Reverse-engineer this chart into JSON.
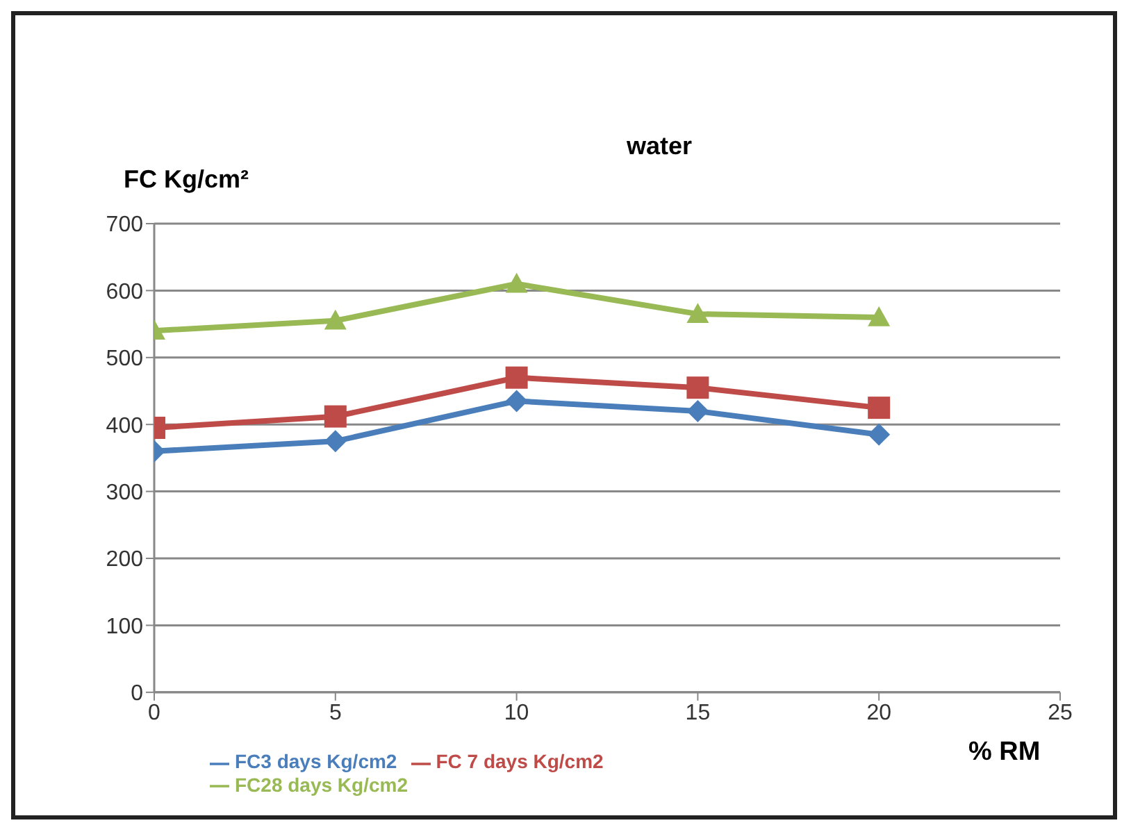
{
  "chart_data": {
    "type": "line",
    "title": "water",
    "ylabel": "FC Kg/cm²",
    "xlabel": "% RM",
    "x": [
      0,
      5,
      10,
      15,
      20
    ],
    "xlim": [
      0,
      25
    ],
    "xticks": [
      0,
      5,
      10,
      15,
      20,
      25
    ],
    "ylim": [
      0,
      700
    ],
    "yticks": [
      0,
      100,
      200,
      300,
      400,
      500,
      600,
      700
    ],
    "grid": "y",
    "legend": "bottom",
    "series": [
      {
        "name": "FC3 days  Kg/cm2",
        "color": "#4a7ebb",
        "marker": "diamond",
        "values": [
          360,
          375,
          435,
          420,
          385
        ]
      },
      {
        "name": "FC 7 days  Kg/cm2",
        "color": "#be4b48",
        "marker": "square",
        "values": [
          395,
          412,
          470,
          455,
          425
        ]
      },
      {
        "name": "FC28 days Kg/cm2",
        "color": "#98b954",
        "marker": "triangle",
        "values": [
          540,
          555,
          610,
          565,
          560
        ]
      }
    ]
  }
}
